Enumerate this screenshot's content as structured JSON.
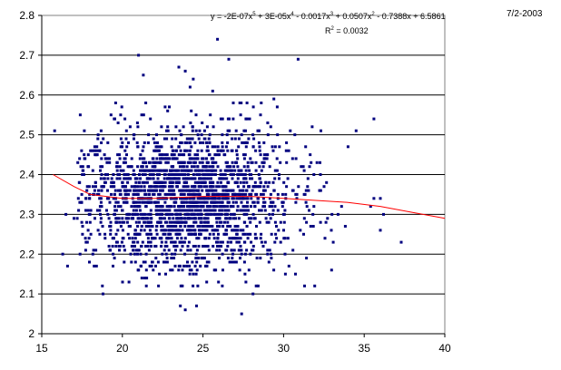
{
  "date_label": "7/2-2003",
  "chart_data": {
    "type": "scatter",
    "title": "",
    "xlabel": "",
    "ylabel": "",
    "xlim": [
      15,
      40
    ],
    "ylim": [
      2.0,
      2.8
    ],
    "x_ticks": [
      "15",
      "20",
      "25",
      "30",
      "35",
      "40"
    ],
    "y_ticks": [
      "2",
      "2.1",
      "2.2",
      "2.3",
      "2.4",
      "2.5",
      "2.6",
      "2.7",
      "2.8"
    ],
    "grid": "horizontal",
    "legend": "none",
    "colors": {
      "points": "#00007f",
      "trendline": "#ff0000",
      "plot_background": "#ffffff",
      "gridline": "#000000"
    },
    "trendline": {
      "type": "polynomial",
      "order": 5,
      "equation_parts": {
        "p1": "y = -2E-07x",
        "e1": "5",
        "p2": " + 3E-05x",
        "e2": "4",
        "p3": " - 0.0017x",
        "e3": "3",
        "p4": " + 0.0507x",
        "e4": "2",
        "p5": " - 0.7388x + 6.5861"
      },
      "r2_parts": {
        "prefix": "R",
        "exp": "2",
        "suffix": " = 0.0032"
      },
      "points": [
        [
          15.7,
          2.4
        ],
        [
          17.0,
          2.37
        ],
        [
          18.0,
          2.35
        ],
        [
          20.0,
          2.34
        ],
        [
          22.0,
          2.34
        ],
        [
          25.0,
          2.345
        ],
        [
          28.0,
          2.345
        ],
        [
          30.0,
          2.34
        ],
        [
          32.0,
          2.335
        ],
        [
          34.0,
          2.33
        ],
        [
          36.0,
          2.32
        ],
        [
          38.0,
          2.305
        ],
        [
          40.0,
          2.29
        ]
      ]
    },
    "series": [
      {
        "name": "",
        "sample_size": 2200,
        "x_center": 24.0,
        "x_spread": 3.3,
        "y_center": 2.34,
        "y_spread": 0.085,
        "points": [
          [
            15.8,
            2.51
          ],
          [
            16.3,
            2.2
          ],
          [
            16.6,
            2.17
          ],
          [
            16.5,
            2.3
          ],
          [
            17.0,
            2.29
          ],
          [
            21.0,
            2.7
          ],
          [
            21.3,
            2.65
          ],
          [
            23.5,
            2.67
          ],
          [
            23.9,
            2.66
          ],
          [
            24.4,
            2.64
          ],
          [
            24.2,
            2.62
          ],
          [
            25.6,
            2.61
          ],
          [
            26.6,
            2.69
          ],
          [
            25.9,
            2.74
          ],
          [
            29.4,
            2.59
          ],
          [
            30.9,
            2.69
          ],
          [
            35.6,
            2.54
          ],
          [
            34.5,
            2.51
          ],
          [
            34.0,
            2.47
          ],
          [
            35.6,
            2.34
          ],
          [
            36.0,
            2.34
          ],
          [
            35.4,
            2.32
          ],
          [
            36.2,
            2.3
          ],
          [
            36.0,
            2.26
          ],
          [
            37.3,
            2.23
          ],
          [
            27.4,
            2.05
          ],
          [
            23.6,
            2.07
          ],
          [
            23.9,
            2.06
          ],
          [
            24.6,
            2.07
          ],
          [
            28.1,
            2.1
          ],
          [
            18.8,
            2.1
          ],
          [
            26.2,
            2.12
          ],
          [
            33.0,
            2.3
          ],
          [
            31.3,
            2.12
          ],
          [
            19.1,
            2.48
          ]
        ]
      }
    ]
  }
}
